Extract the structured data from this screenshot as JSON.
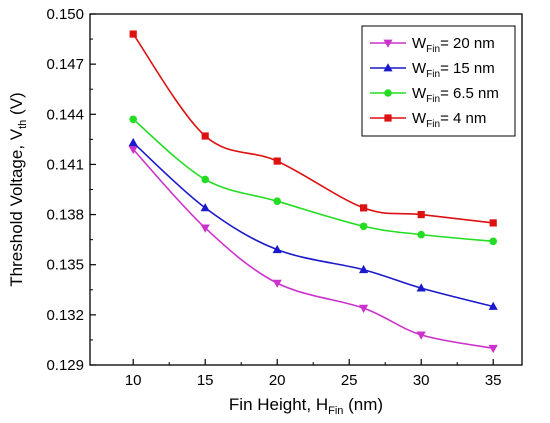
{
  "chart_data": {
    "type": "line",
    "title": "",
    "xlabel": {
      "main": "Fin Height, H",
      "sub": "Fin",
      "unit": " (nm)"
    },
    "ylabel": {
      "main": "Threshold Voltage, V",
      "sub": "th",
      "unit": " (V)"
    },
    "xlim": [
      7,
      37
    ],
    "ylim": [
      0.129,
      0.15
    ],
    "x_ticks": [
      10,
      15,
      20,
      25,
      30,
      35
    ],
    "x_tick_labels": [
      "10",
      "15",
      "20",
      "25",
      "30",
      "35"
    ],
    "y_ticks": [
      0.129,
      0.132,
      0.135,
      0.138,
      0.141,
      0.144,
      0.147,
      0.15
    ],
    "y_tick_labels": [
      "0.129",
      "0.132",
      "0.135",
      "0.138",
      "0.141",
      "0.144",
      "0.147",
      "0.150"
    ],
    "grid": false,
    "legend_position": "top-right",
    "series": [
      {
        "name": {
          "main": "W",
          "sub": "Fin",
          "rest": "= 20 nm"
        },
        "color": "#cc33cc",
        "marker": "triangle-down",
        "x": [
          10,
          15,
          20,
          26,
          30,
          35
        ],
        "values": [
          0.1419,
          0.1372,
          0.1339,
          0.1324,
          0.1308,
          0.13
        ]
      },
      {
        "name": {
          "main": "W",
          "sub": "Fin",
          "rest": "= 15 nm"
        },
        "color": "#1a1acc",
        "marker": "triangle-up",
        "x": [
          10,
          15,
          20,
          26,
          30,
          35
        ],
        "values": [
          0.1423,
          0.1384,
          0.1359,
          0.1347,
          0.1336,
          0.1325
        ]
      },
      {
        "name": {
          "main": "W",
          "sub": "Fin",
          "rest": "= 6.5 nm"
        },
        "color": "#22dd22",
        "marker": "circle",
        "x": [
          10,
          15,
          20,
          26,
          30,
          35
        ],
        "values": [
          0.1437,
          0.1401,
          0.1388,
          0.1373,
          0.1368,
          0.1364
        ]
      },
      {
        "name": {
          "main": "W",
          "sub": "Fin",
          "rest": "= 4 nm"
        },
        "color": "#dd1111",
        "marker": "square",
        "x": [
          10,
          15,
          20,
          26,
          30,
          35
        ],
        "values": [
          0.1488,
          0.1427,
          0.1412,
          0.1384,
          0.138,
          0.1375
        ]
      }
    ]
  }
}
